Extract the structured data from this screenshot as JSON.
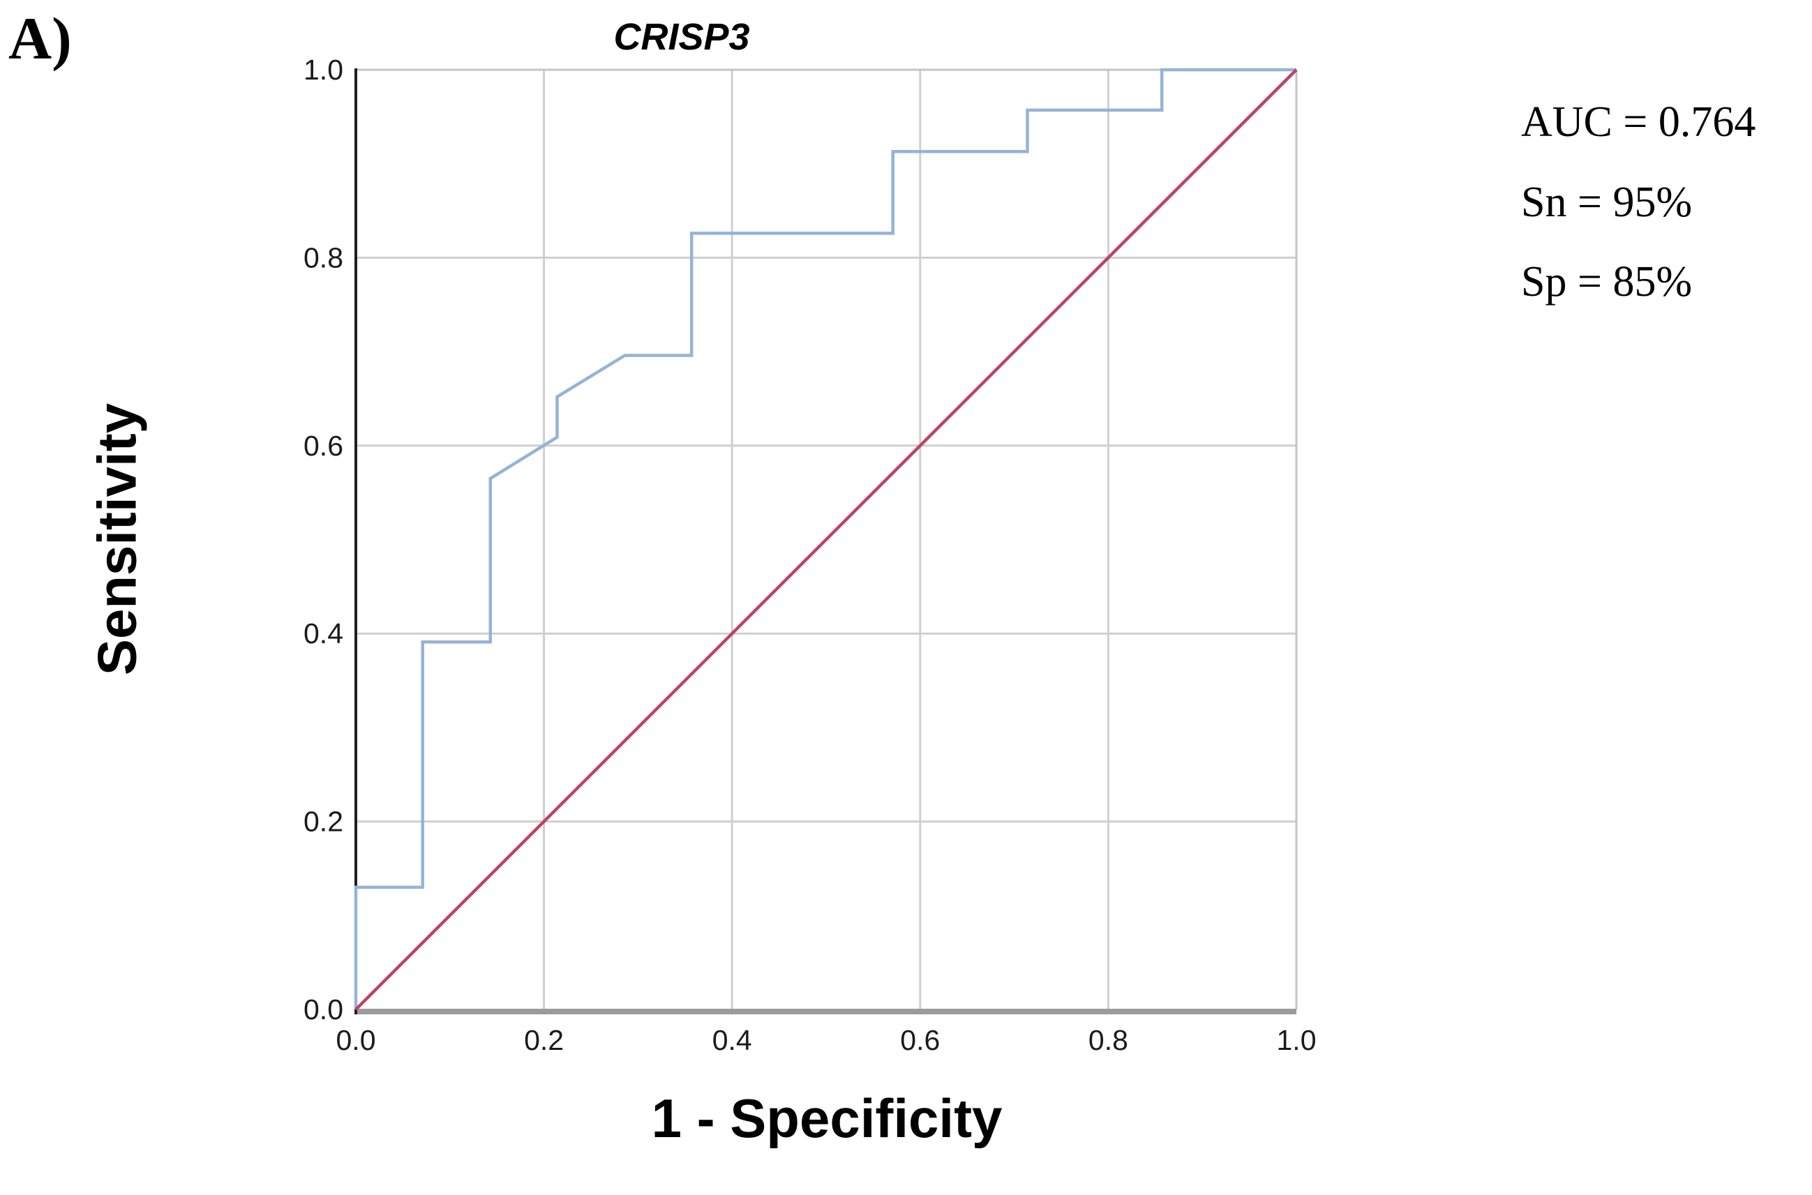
{
  "panel_label": "A)",
  "annotation": {
    "lines": [
      "AUC = 0.764",
      "Sn = 95%",
      "Sp = 85%"
    ]
  },
  "chart_data": {
    "type": "line",
    "title": "CRISP3",
    "xlabel": "1 - Specificity",
    "ylabel": "Sensitivity",
    "xlim": [
      0.0,
      1.0
    ],
    "ylim": [
      0.0,
      1.0
    ],
    "grid": true,
    "legend_position": "none",
    "x_ticks": [
      {
        "v": 0.0,
        "label": "0.0"
      },
      {
        "v": 0.2,
        "label": "0.2"
      },
      {
        "v": 0.4,
        "label": "0.4"
      },
      {
        "v": 0.6,
        "label": "0.6"
      },
      {
        "v": 0.8,
        "label": "0.8"
      },
      {
        "v": 1.0,
        "label": "1.0"
      }
    ],
    "y_ticks": [
      {
        "v": 0.0,
        "label": "0.0"
      },
      {
        "v": 0.2,
        "label": "0.2"
      },
      {
        "v": 0.4,
        "label": "0.4"
      },
      {
        "v": 0.6,
        "label": "0.6"
      },
      {
        "v": 0.8,
        "label": "0.8"
      },
      {
        "v": 1.0,
        "label": "1.0"
      }
    ],
    "series": [
      {
        "name": "ROC curve CRISP3",
        "color": "#95b3d7",
        "points": [
          [
            0.0,
            0.0
          ],
          [
            0.0,
            0.13
          ],
          [
            0.071,
            0.13
          ],
          [
            0.071,
            0.391
          ],
          [
            0.143,
            0.391
          ],
          [
            0.143,
            0.565
          ],
          [
            0.214,
            0.609
          ],
          [
            0.214,
            0.652
          ],
          [
            0.286,
            0.696
          ],
          [
            0.357,
            0.696
          ],
          [
            0.357,
            0.826
          ],
          [
            0.571,
            0.826
          ],
          [
            0.571,
            0.913
          ],
          [
            0.714,
            0.913
          ],
          [
            0.714,
            0.957
          ],
          [
            0.857,
            0.957
          ],
          [
            0.857,
            1.0
          ],
          [
            1.0,
            1.0
          ]
        ]
      },
      {
        "name": "Reference diagonal",
        "color": "#bb4468",
        "points": [
          [
            0.0,
            0.0
          ],
          [
            1.0,
            1.0
          ]
        ]
      }
    ],
    "colors": {
      "gridline": "#cfcfcf",
      "border": "#c4c4c4",
      "bottom_axis": "#9b9b9b",
      "left_axis": "#1f1f1f",
      "text": "#000000"
    },
    "stats": {
      "auc": 0.764,
      "sensitivity_pct": 95,
      "specificity_pct": 85
    }
  }
}
